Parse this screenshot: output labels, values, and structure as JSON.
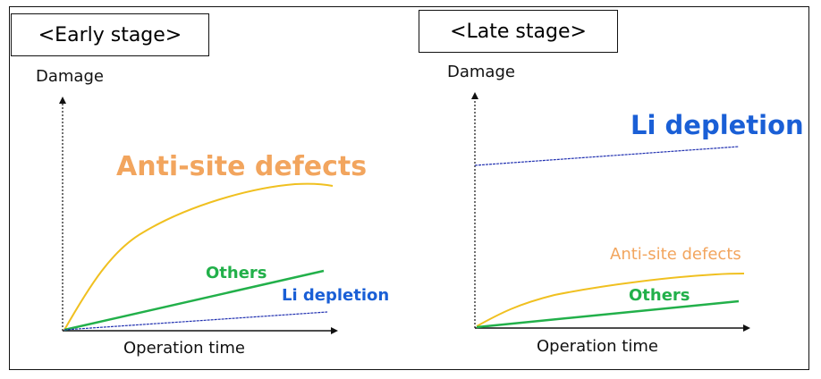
{
  "colors": {
    "anti_site": "#f2a55e",
    "anti_site_curve": "#f0c020",
    "others": "#22b04a",
    "li_depletion": "#1a5fd6",
    "li_depletion_line": "#1f2fb0",
    "axis": "#111111"
  },
  "early": {
    "title": "<Early stage>",
    "y_axis_label": "Damage",
    "x_axis_label": "Operation time",
    "labels": {
      "anti_site": "Anti-site defects",
      "others": "Others",
      "li_depletion": "Li depletion"
    }
  },
  "late": {
    "title": "<Late stage>",
    "y_axis_label": "Damage",
    "x_axis_label": "Operation time",
    "labels": {
      "li_depletion": "Li depletion",
      "anti_site": "Anti-site defects",
      "others": "Others"
    }
  }
}
